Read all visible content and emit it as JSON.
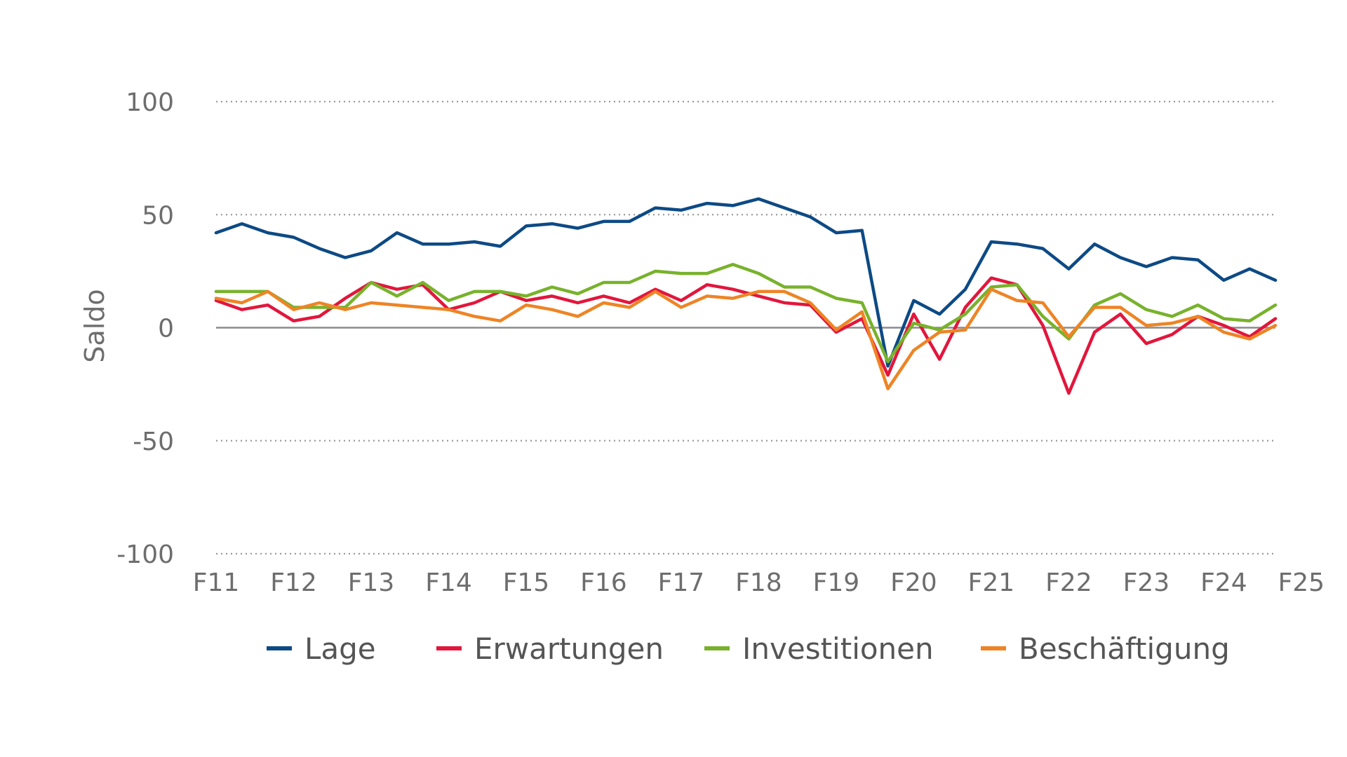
{
  "chart_data": {
    "type": "line",
    "ylabel": "Saldo",
    "ylim": [
      -100,
      100
    ],
    "yticks": [
      100,
      50,
      0,
      -50,
      -100
    ],
    "y_tick_labels": [
      "100",
      "50",
      "0",
      "-50",
      "-100"
    ],
    "xticks": [
      "F11",
      "F12",
      "F13",
      "F14",
      "F15",
      "F16",
      "F17",
      "F18",
      "F19",
      "F20",
      "F21",
      "F22",
      "F23",
      "F24",
      "F25"
    ],
    "points_per_year": 3,
    "grid": "horizontal dotted",
    "legend_position": "bottom",
    "series": [
      {
        "name": "Lage",
        "color": "#0d4a85",
        "values": [
          42,
          46,
          42,
          40,
          35,
          31,
          34,
          42,
          37,
          37,
          38,
          36,
          45,
          46,
          44,
          47,
          47,
          53,
          52,
          55,
          54,
          57,
          53,
          49,
          42,
          43,
          -17,
          12,
          6,
          17,
          38,
          37,
          35,
          26,
          37,
          31,
          27,
          31,
          30,
          21,
          26,
          21
        ]
      },
      {
        "name": "Erwartungen",
        "color": "#e2163c",
        "values": [
          12,
          8,
          10,
          3,
          5,
          13,
          20,
          17,
          19,
          8,
          11,
          16,
          12,
          14,
          11,
          14,
          11,
          17,
          12,
          19,
          17,
          14,
          11,
          10,
          -2,
          4,
          -21,
          6,
          -14,
          9,
          22,
          19,
          1,
          -29,
          -2,
          6,
          -7,
          -3,
          5,
          1,
          -4,
          4
        ]
      },
      {
        "name": "Investitionen",
        "color": "#78b22c",
        "values": [
          16,
          16,
          16,
          9,
          9,
          9,
          20,
          14,
          20,
          12,
          16,
          16,
          14,
          18,
          15,
          20,
          20,
          25,
          24,
          24,
          28,
          24,
          18,
          18,
          13,
          11,
          -15,
          2,
          -1,
          6,
          18,
          19,
          5,
          -5,
          10,
          15,
          8,
          5,
          10,
          4,
          3,
          10
        ]
      },
      {
        "name": "Beschäftigung",
        "color": "#ee8425",
        "values": [
          13,
          11,
          16,
          8,
          11,
          8,
          11,
          10,
          9,
          8,
          5,
          3,
          10,
          8,
          5,
          11,
          9,
          16,
          9,
          14,
          13,
          16,
          16,
          11,
          -1,
          7,
          -27,
          -10,
          -2,
          -1,
          17,
          12,
          11,
          -4,
          9,
          9,
          1,
          2,
          5,
          -2,
          -5,
          1
        ]
      }
    ]
  }
}
